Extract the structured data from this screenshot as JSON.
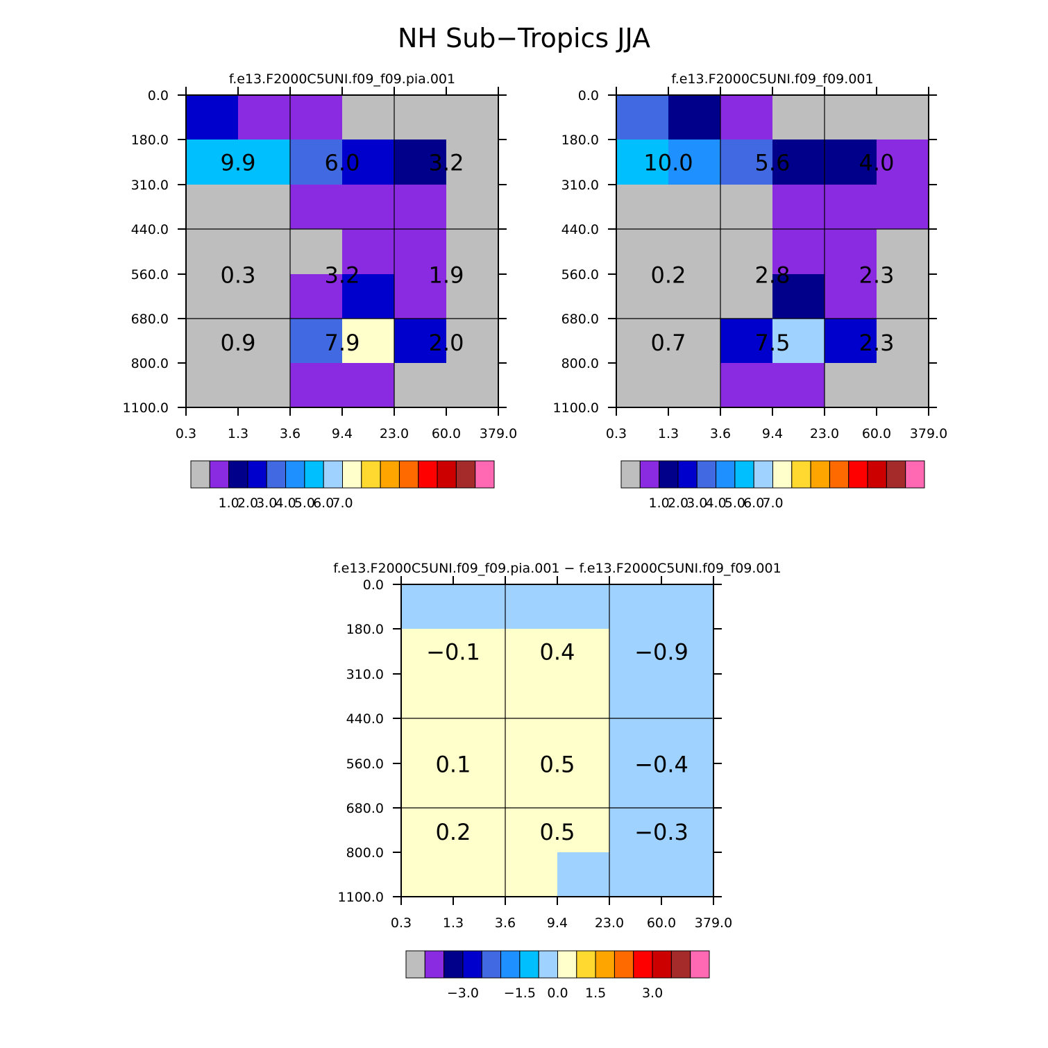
{
  "figure_title": "NH Sub−Tropics JJA",
  "chart_data": [
    {
      "type": "heatmap",
      "panel": "top-left",
      "title": "f.e13.F2000C5UNI.f09_f09.pia.001",
      "x_tick_labels": [
        "0.3",
        "1.3",
        "3.6",
        "9.4",
        "23.0",
        "60.0",
        "379.0"
      ],
      "y_tick_labels": [
        "0.0",
        "180.0",
        "310.0",
        "440.0",
        "560.0",
        "680.0",
        "800.0",
        "1100.0"
      ],
      "cell_colors": [
        [
          "#0000cd",
          "#8a2be2",
          "#8a2be2",
          "#bebebe",
          "#bebebe",
          "#bebebe"
        ],
        [
          "#00bfff",
          "#00bfff",
          "#4169e1",
          "#0000cd",
          "#00008b",
          "#bebebe"
        ],
        [
          "#bebebe",
          "#bebebe",
          "#8a2be2",
          "#8a2be2",
          "#8a2be2",
          "#bebebe"
        ],
        [
          "#bebebe",
          "#bebebe",
          "#bebebe",
          "#8a2be2",
          "#8a2be2",
          "#bebebe"
        ],
        [
          "#bebebe",
          "#bebebe",
          "#8a2be2",
          "#0000cd",
          "#8a2be2",
          "#bebebe"
        ],
        [
          "#bebebe",
          "#bebebe",
          "#4169e1",
          "#ffffcc",
          "#0000cd",
          "#bebebe"
        ],
        [
          "#bebebe",
          "#bebebe",
          "#8a2be2",
          "#8a2be2",
          "#bebebe",
          "#bebebe"
        ]
      ],
      "block_values": [
        [
          "9.9",
          "6.0",
          "3.2"
        ],
        [
          "0.3",
          "3.2",
          "1.9"
        ],
        [
          "0.9",
          "7.9",
          "2.0"
        ]
      ],
      "colorbar": {
        "colors": [
          "#bebebe",
          "#8a2be2",
          "#00008b",
          "#0000cd",
          "#4169e1",
          "#1e90ff",
          "#00bfff",
          "#a0d2ff",
          "#ffffcc",
          "#ffd92f",
          "#ffa500",
          "#ff6a00",
          "#ff0000",
          "#cd0000",
          "#a52a2a",
          "#ff69b4"
        ],
        "tick_labels": [
          "1.0",
          "2.0",
          "3.0",
          "4.0",
          "5.0",
          "6.0",
          "7.0"
        ]
      }
    },
    {
      "type": "heatmap",
      "panel": "top-right",
      "title": "f.e13.F2000C5UNI.f09_f09.001",
      "x_tick_labels": [
        "0.3",
        "1.3",
        "3.6",
        "9.4",
        "23.0",
        "60.0",
        "379.0"
      ],
      "y_tick_labels": [
        "0.0",
        "180.0",
        "310.0",
        "440.0",
        "560.0",
        "680.0",
        "800.0",
        "1100.0"
      ],
      "cell_colors": [
        [
          "#4169e1",
          "#00008b",
          "#8a2be2",
          "#bebebe",
          "#bebebe",
          "#bebebe"
        ],
        [
          "#00bfff",
          "#1e90ff",
          "#4169e1",
          "#00008b",
          "#00008b",
          "#8a2be2"
        ],
        [
          "#bebebe",
          "#bebebe",
          "#bebebe",
          "#8a2be2",
          "#8a2be2",
          "#8a2be2"
        ],
        [
          "#bebebe",
          "#bebebe",
          "#bebebe",
          "#8a2be2",
          "#8a2be2",
          "#bebebe"
        ],
        [
          "#bebebe",
          "#bebebe",
          "#bebebe",
          "#00008b",
          "#8a2be2",
          "#bebebe"
        ],
        [
          "#bebebe",
          "#bebebe",
          "#0000cd",
          "#a0d2ff",
          "#0000cd",
          "#bebebe"
        ],
        [
          "#bebebe",
          "#bebebe",
          "#8a2be2",
          "#8a2be2",
          "#bebebe",
          "#bebebe"
        ]
      ],
      "block_values": [
        [
          "10.0",
          "5.6",
          "4.0"
        ],
        [
          "0.2",
          "2.8",
          "2.3"
        ],
        [
          "0.7",
          "7.5",
          "2.3"
        ]
      ],
      "colorbar": {
        "colors": [
          "#bebebe",
          "#8a2be2",
          "#00008b",
          "#0000cd",
          "#4169e1",
          "#1e90ff",
          "#00bfff",
          "#a0d2ff",
          "#ffffcc",
          "#ffd92f",
          "#ffa500",
          "#ff6a00",
          "#ff0000",
          "#cd0000",
          "#a52a2a",
          "#ff69b4"
        ],
        "tick_labels": [
          "1.0",
          "2.0",
          "3.0",
          "4.0",
          "5.0",
          "6.0",
          "7.0"
        ]
      }
    },
    {
      "type": "heatmap",
      "panel": "bottom",
      "title": "f.e13.F2000C5UNI.f09_f09.pia.001 − f.e13.F2000C5UNI.f09_f09.001",
      "x_tick_labels": [
        "0.3",
        "1.3",
        "3.6",
        "9.4",
        "23.0",
        "60.0",
        "379.0"
      ],
      "y_tick_labels": [
        "0.0",
        "180.0",
        "310.0",
        "440.0",
        "560.0",
        "680.0",
        "800.0",
        "1100.0"
      ],
      "cell_colors": [
        [
          "#a0d2ff",
          "#a0d2ff",
          "#a0d2ff",
          "#a0d2ff",
          "#a0d2ff",
          "#a0d2ff"
        ],
        [
          "#ffffcc",
          "#ffffcc",
          "#ffffcc",
          "#ffffcc",
          "#a0d2ff",
          "#a0d2ff"
        ],
        [
          "#ffffcc",
          "#ffffcc",
          "#ffffcc",
          "#ffffcc",
          "#a0d2ff",
          "#a0d2ff"
        ],
        [
          "#ffffcc",
          "#ffffcc",
          "#ffffcc",
          "#ffffcc",
          "#a0d2ff",
          "#a0d2ff"
        ],
        [
          "#ffffcc",
          "#ffffcc",
          "#ffffcc",
          "#ffffcc",
          "#a0d2ff",
          "#a0d2ff"
        ],
        [
          "#ffffcc",
          "#ffffcc",
          "#ffffcc",
          "#ffffcc",
          "#a0d2ff",
          "#a0d2ff"
        ],
        [
          "#ffffcc",
          "#ffffcc",
          "#ffffcc",
          "#a0d2ff",
          "#a0d2ff",
          "#a0d2ff"
        ]
      ],
      "block_values": [
        [
          "−0.1",
          "0.4",
          "−0.9"
        ],
        [
          "0.1",
          "0.5",
          "−0.4"
        ],
        [
          "0.2",
          "0.5",
          "−0.3"
        ]
      ],
      "colorbar": {
        "colors": [
          "#bebebe",
          "#8a2be2",
          "#00008b",
          "#0000cd",
          "#4169e1",
          "#1e90ff",
          "#00bfff",
          "#a0d2ff",
          "#ffffcc",
          "#ffd92f",
          "#ffa500",
          "#ff6a00",
          "#ff0000",
          "#cd0000",
          "#a52a2a",
          "#ff69b4"
        ],
        "tick_labels": [
          "−3.0",
          "−1.5",
          "0.0",
          "1.5",
          "3.0"
        ]
      }
    }
  ]
}
